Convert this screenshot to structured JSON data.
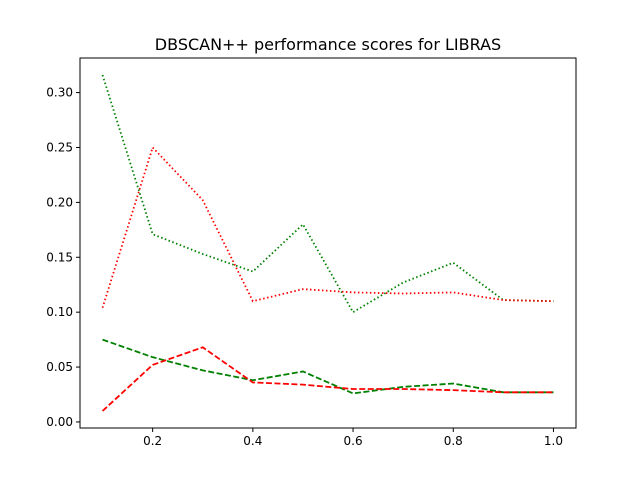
{
  "chart_data": {
    "type": "line",
    "title": "DBSCAN++ performance scores for LIBRAS",
    "xlabel": "",
    "ylabel": "",
    "x": [
      0.1,
      0.2,
      0.3,
      0.4,
      0.5,
      0.6,
      0.7,
      0.8,
      0.9,
      1.0
    ],
    "xlim": [
      0.055,
      1.045
    ],
    "ylim": [
      -0.0055,
      0.3315
    ],
    "xticks": [
      0.2,
      0.4,
      0.6,
      0.8,
      1.0
    ],
    "xtick_labels": [
      "0.2",
      "0.4",
      "0.6",
      "0.8",
      "1.0"
    ],
    "yticks": [
      0.0,
      0.05,
      0.1,
      0.15,
      0.2,
      0.25,
      0.3
    ],
    "ytick_labels": [
      "0.00",
      "0.05",
      "0.10",
      "0.15",
      "0.20",
      "0.25",
      "0.30"
    ],
    "grid": false,
    "legend": "none",
    "series": [
      {
        "color": "#008000",
        "style": "dotted",
        "values": [
          0.316,
          0.171,
          0.153,
          0.137,
          0.18,
          0.1,
          0.127,
          0.145,
          0.111,
          0.11
        ]
      },
      {
        "color": "#ff0000",
        "style": "dotted",
        "values": [
          0.104,
          0.25,
          0.202,
          0.11,
          0.121,
          0.118,
          0.117,
          0.118,
          0.111,
          0.11
        ]
      },
      {
        "color": "#008000",
        "style": "dashed",
        "values": [
          0.075,
          0.059,
          0.047,
          0.038,
          0.046,
          0.026,
          0.032,
          0.035,
          0.027,
          0.027
        ]
      },
      {
        "color": "#ff0000",
        "style": "dashed",
        "values": [
          0.01,
          0.052,
          0.068,
          0.036,
          0.034,
          0.03,
          0.03,
          0.029,
          0.027,
          0.027
        ]
      }
    ]
  }
}
